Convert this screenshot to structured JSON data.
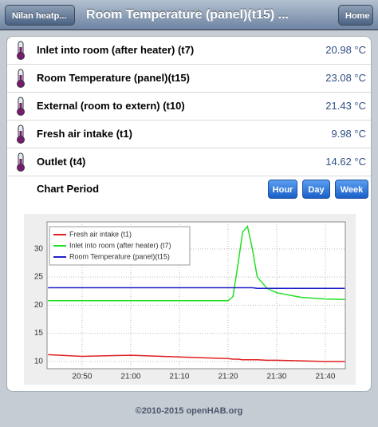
{
  "header": {
    "back": "Nilan heatp...",
    "title": "Room Temperature (panel)(t15) ...",
    "home": "Home"
  },
  "rows": [
    {
      "label": "Inlet into room (after heater) (t7)",
      "value": "20.98 °C"
    },
    {
      "label": "Room Temperature (panel)(t15)",
      "value": "23.08 °C"
    },
    {
      "label": "External (room to extern) (t10)",
      "value": "21.43 °C"
    },
    {
      "label": "Fresh air intake (t1)",
      "value": "9.98 °C"
    },
    {
      "label": "Outlet (t4)",
      "value": "14.62 °C"
    }
  ],
  "chart_period": {
    "label": "Chart Period",
    "buttons": [
      "Hour",
      "Day",
      "Week"
    ]
  },
  "chart": {
    "type": "line",
    "x": [
      1243,
      1250,
      1260,
      1270,
      1280,
      1281,
      1282,
      1283,
      1284,
      1285,
      1286,
      1288,
      1290,
      1295,
      1300,
      1304
    ],
    "series": [
      {
        "name": "Fresh air intake (t1)",
        "color": "#e02020",
        "values": [
          11.2,
          10.9,
          11.1,
          10.8,
          10.5,
          10.4,
          10.4,
          10.3,
          10.3,
          10.3,
          10.3,
          10.2,
          10.2,
          10.1,
          10.0,
          10.0
        ]
      },
      {
        "name": "Inlet into room (after heater) (t7)",
        "color": "#22e022",
        "values": [
          20.8,
          20.8,
          20.8,
          20.8,
          20.8,
          21.5,
          27,
          33,
          34,
          30,
          25,
          23,
          22.2,
          21.4,
          21.1,
          21.0
        ]
      },
      {
        "name": "Room Temperature (panel)(t15)",
        "color": "#2020c8",
        "values": [
          23.1,
          23.1,
          23.1,
          23.1,
          23.1,
          23.1,
          23.1,
          23.1,
          23.1,
          23.1,
          23.0,
          23.0,
          23.0,
          23.0,
          23.0,
          23.0
        ]
      }
    ],
    "xlim": [
      1242.8,
      1304.1
    ],
    "xticks": [
      {
        "value": 1250,
        "label": "20:50"
      },
      {
        "value": 1260,
        "label": "21:00"
      },
      {
        "value": 1270,
        "label": "21:10"
      },
      {
        "value": 1280,
        "label": "21:20"
      },
      {
        "value": 1290,
        "label": "21:30"
      },
      {
        "value": 1300,
        "label": "21:40"
      }
    ],
    "ylim": [
      8.7,
      34.8
    ],
    "yticks": [
      10,
      15,
      20,
      25,
      30
    ],
    "grid": true
  },
  "footer": "©2010-2015 openHAB.org"
}
